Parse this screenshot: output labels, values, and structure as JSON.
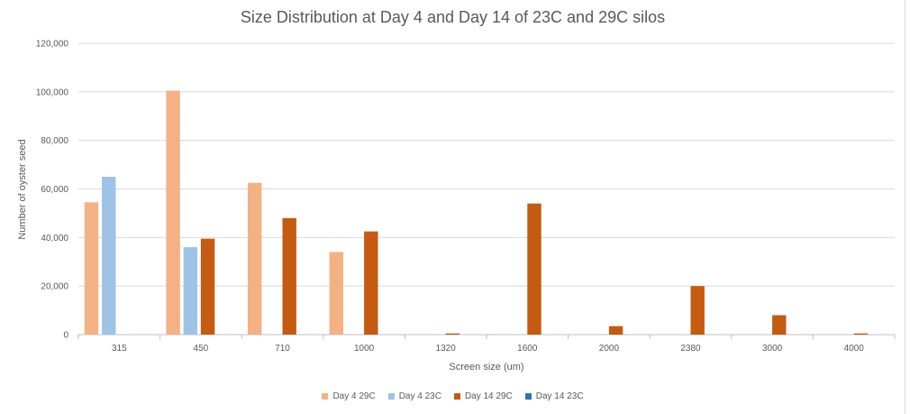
{
  "chart_data": {
    "type": "bar",
    "title": "Size Distribution at Day 4 and Day 14 of 23C and 29C silos",
    "xlabel": "Screen size (um)",
    "ylabel": "Number of oyster seed",
    "categories": [
      "315",
      "450",
      "710",
      "1000",
      "1320",
      "1600",
      "2000",
      "2380",
      "3000",
      "4000"
    ],
    "ylim": [
      0,
      120000
    ],
    "yticks": [
      0,
      20000,
      40000,
      60000,
      80000,
      100000,
      120000
    ],
    "ytick_labels": [
      "0",
      "20,000",
      "40,000",
      "60,000",
      "80,000",
      "100,000",
      "120,000"
    ],
    "grid": true,
    "legend_position": "bottom",
    "series": [
      {
        "name": "Day 4 29C",
        "color": "#f4b183",
        "values": [
          54500,
          100500,
          62500,
          34000,
          0,
          0,
          0,
          0,
          0,
          0
        ]
      },
      {
        "name": "Day 4 23C",
        "color": "#9dc3e6",
        "values": [
          65000,
          36000,
          0,
          0,
          0,
          0,
          0,
          0,
          0,
          0
        ]
      },
      {
        "name": "Day 14 29C",
        "color": "#c55a11",
        "values": [
          0,
          39500,
          48000,
          42500,
          500,
          54000,
          3500,
          20000,
          8000,
          500
        ]
      },
      {
        "name": "Day 14 23C",
        "color": "#2e75b6",
        "values": [
          0,
          0,
          0,
          0,
          0,
          0,
          0,
          0,
          0,
          0
        ]
      }
    ]
  }
}
